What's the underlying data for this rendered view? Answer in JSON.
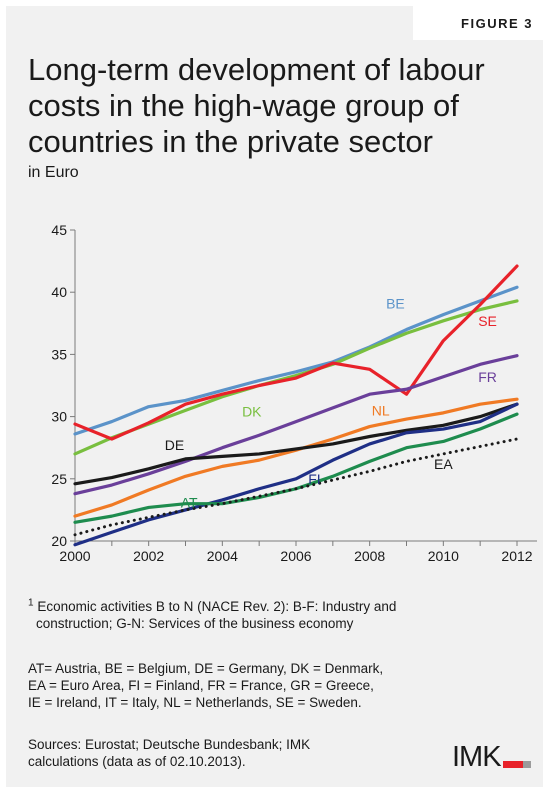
{
  "figure_label": "FIGURE 3",
  "title_lines": [
    "Long-term development of labour",
    "costs in the high-wage group of",
    "countries in the private sector"
  ],
  "subtitle": "in Euro",
  "notes": {
    "footnote_marker": "1",
    "footnote_line1": "Economic activities B to N (NACE Rev. 2): B-F: Industry and",
    "footnote_line2": "construction; G-N: Services of the business economy",
    "abbrev_lines": [
      "AT= Austria, BE = Belgium, DE = Germany, DK = Denmark,",
      "EA = Euro Area, FI = Finland, FR = France, GR = Greece,",
      "IE = Ireland, IT = Italy, NL = Netherlands, SE = Sweden."
    ],
    "source_lines": [
      "Sources: Eurostat; Deutsche Bundesbank; IMK",
      "calculations (data as of 02.10.2013)."
    ]
  },
  "logo": {
    "text": "IMK",
    "colors": [
      "#e8222a",
      "#9b9b9b"
    ]
  },
  "chart_data": {
    "type": "line",
    "title": "",
    "xlabel": "",
    "ylabel": "",
    "xlim": [
      2000,
      2012
    ],
    "ylim": [
      20,
      45
    ],
    "xticks": [
      2000,
      2002,
      2004,
      2006,
      2008,
      2010,
      2012
    ],
    "yticks": [
      20,
      25,
      30,
      35,
      40,
      45
    ],
    "grid": false,
    "x": [
      2000,
      2001,
      2002,
      2003,
      2004,
      2005,
      2006,
      2007,
      2008,
      2009,
      2010,
      2011,
      2012
    ],
    "series": [
      {
        "name": "BE",
        "color": "#5b93c9",
        "dash": "solid",
        "values": [
          28.6,
          29.6,
          30.8,
          31.3,
          32.1,
          32.9,
          33.6,
          34.4,
          35.6,
          37.0,
          38.2,
          39.3,
          40.4
        ]
      },
      {
        "name": "DK",
        "color": "#79bf3f",
        "dash": "solid",
        "values": [
          27.0,
          28.3,
          29.4,
          30.5,
          31.6,
          32.5,
          33.3,
          34.2,
          35.5,
          36.7,
          37.7,
          38.6,
          39.3
        ]
      },
      {
        "name": "SE",
        "color": "#e8222a",
        "dash": "solid",
        "values": [
          29.4,
          28.2,
          29.5,
          31.0,
          31.8,
          32.5,
          33.1,
          34.3,
          33.8,
          31.8,
          36.1,
          39.0,
          42.1
        ]
      },
      {
        "name": "FR",
        "color": "#6a3f9a",
        "dash": "solid",
        "values": [
          23.8,
          24.5,
          25.4,
          26.4,
          27.5,
          28.5,
          29.6,
          30.7,
          31.8,
          32.2,
          33.2,
          34.2,
          34.9
        ]
      },
      {
        "name": "NL",
        "color": "#f07a24",
        "dash": "solid",
        "values": [
          22.0,
          22.9,
          24.1,
          25.2,
          26.0,
          26.5,
          27.3,
          28.2,
          29.2,
          29.8,
          30.3,
          31.0,
          31.4
        ]
      },
      {
        "name": "DE",
        "color": "#1a1a1a",
        "dash": "solid",
        "values": [
          24.6,
          25.1,
          25.8,
          26.6,
          26.8,
          27.0,
          27.4,
          27.8,
          28.4,
          28.9,
          29.3,
          30.0,
          31.0
        ]
      },
      {
        "name": "FI",
        "color": "#1f2f86",
        "dash": "solid",
        "values": [
          19.7,
          20.7,
          21.7,
          22.5,
          23.3,
          24.2,
          25.0,
          26.5,
          27.8,
          28.7,
          29.0,
          29.6,
          31.0
        ]
      },
      {
        "name": "AT",
        "color": "#1e8c4e",
        "dash": "solid",
        "values": [
          21.5,
          22.0,
          22.7,
          23.0,
          23.0,
          23.5,
          24.2,
          25.2,
          26.4,
          27.5,
          28.0,
          29.0,
          30.2
        ]
      },
      {
        "name": "EA",
        "color": "#1a1a1a",
        "dash": "dotted",
        "values": [
          20.5,
          21.3,
          21.9,
          22.5,
          23.0,
          23.6,
          24.2,
          24.9,
          25.6,
          26.4,
          27.0,
          27.6,
          28.2
        ]
      }
    ],
    "annotations": [
      {
        "text": "BE",
        "color": "#5b93c9",
        "x": 2008.7,
        "y": 38.7
      },
      {
        "text": "SE",
        "color": "#e8222a",
        "x": 2011.2,
        "y": 37.3
      },
      {
        "text": "FR",
        "color": "#6a3f9a",
        "x": 2011.2,
        "y": 32.8
      },
      {
        "text": "DK",
        "color": "#79bf3f",
        "x": 2004.8,
        "y": 30.0
      },
      {
        "text": "NL",
        "color": "#f07a24",
        "x": 2008.3,
        "y": 30.1
      },
      {
        "text": "DE",
        "color": "#1a1a1a",
        "x": 2002.7,
        "y": 27.3
      },
      {
        "text": "FI",
        "color": "#1f2f86",
        "x": 2006.5,
        "y": 24.6
      },
      {
        "text": "EA",
        "color": "#1a1a1a",
        "x": 2010.0,
        "y": 25.8
      },
      {
        "text": "AT",
        "color": "#1e8c4e",
        "x": 2003.1,
        "y": 22.7
      }
    ]
  }
}
